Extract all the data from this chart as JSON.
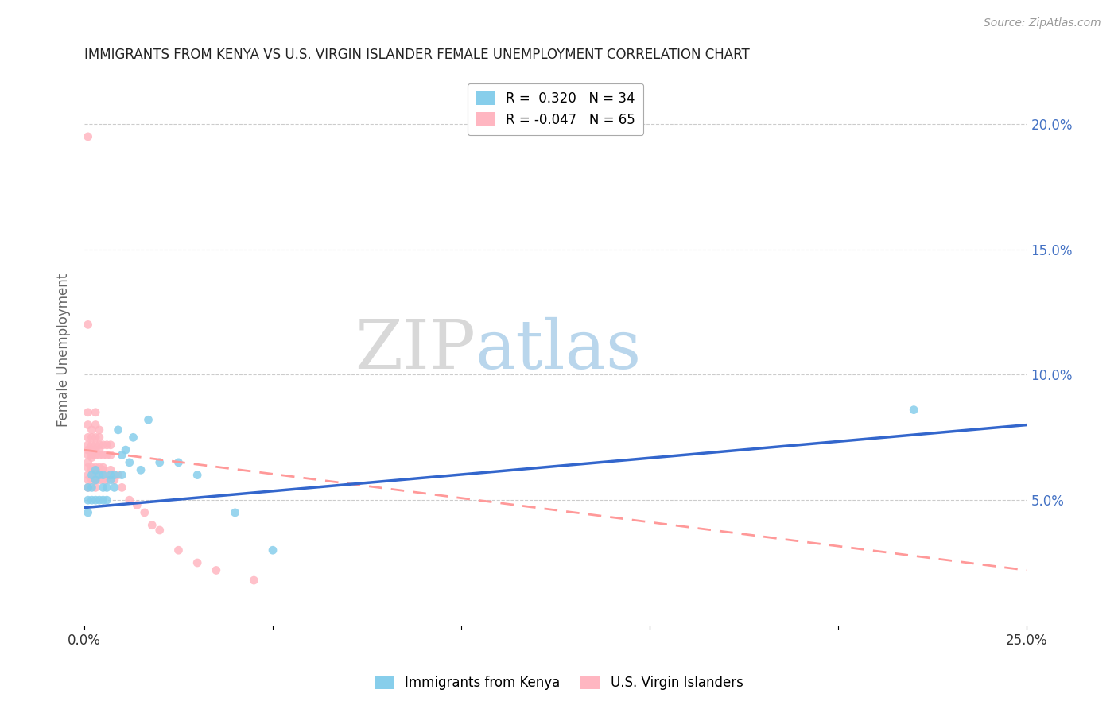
{
  "title": "IMMIGRANTS FROM KENYA VS U.S. VIRGIN ISLANDER FEMALE UNEMPLOYMENT CORRELATION CHART",
  "source_text": "Source: ZipAtlas.com",
  "ylabel": "Female Unemployment",
  "xlim": [
    0.0,
    0.25
  ],
  "ylim": [
    0.0,
    0.22
  ],
  "right_yticks": [
    0.05,
    0.1,
    0.15,
    0.2
  ],
  "right_yticklabels": [
    "5.0%",
    "10.0%",
    "15.0%",
    "20.0%"
  ],
  "xticks": [
    0.0,
    0.05,
    0.1,
    0.15,
    0.2,
    0.25
  ],
  "xticklabels": [
    "0.0%",
    "",
    "",
    "",
    "",
    "25.0%"
  ],
  "kenya_color": "#87CEEB",
  "virgin_color": "#FFB6C1",
  "kenya_line_color": "#3366CC",
  "virgin_line_color": "#FF9999",
  "watermark_zip": "ZIP",
  "watermark_atlas": "atlas",
  "kenya_scatter_x": [
    0.001,
    0.001,
    0.001,
    0.002,
    0.002,
    0.002,
    0.003,
    0.003,
    0.003,
    0.004,
    0.004,
    0.005,
    0.005,
    0.005,
    0.006,
    0.006,
    0.007,
    0.007,
    0.008,
    0.008,
    0.009,
    0.01,
    0.01,
    0.011,
    0.012,
    0.013,
    0.015,
    0.017,
    0.02,
    0.025,
    0.03,
    0.04,
    0.22,
    0.05
  ],
  "kenya_scatter_y": [
    0.05,
    0.045,
    0.055,
    0.05,
    0.06,
    0.055,
    0.05,
    0.058,
    0.062,
    0.05,
    0.06,
    0.05,
    0.055,
    0.06,
    0.055,
    0.05,
    0.058,
    0.06,
    0.055,
    0.06,
    0.078,
    0.06,
    0.068,
    0.07,
    0.065,
    0.075,
    0.062,
    0.082,
    0.065,
    0.065,
    0.06,
    0.045,
    0.086,
    0.03
  ],
  "virgin_scatter_x": [
    0.001,
    0.001,
    0.001,
    0.001,
    0.001,
    0.001,
    0.001,
    0.001,
    0.001,
    0.001,
    0.001,
    0.001,
    0.002,
    0.002,
    0.002,
    0.002,
    0.002,
    0.002,
    0.002,
    0.002,
    0.002,
    0.003,
    0.003,
    0.003,
    0.003,
    0.003,
    0.003,
    0.003,
    0.003,
    0.003,
    0.003,
    0.003,
    0.004,
    0.004,
    0.004,
    0.004,
    0.004,
    0.004,
    0.004,
    0.004,
    0.005,
    0.005,
    0.005,
    0.005,
    0.005,
    0.006,
    0.006,
    0.006,
    0.006,
    0.007,
    0.007,
    0.007,
    0.008,
    0.009,
    0.01,
    0.012,
    0.014,
    0.016,
    0.018,
    0.02,
    0.025,
    0.03,
    0.035,
    0.045,
    0.001
  ],
  "virgin_scatter_y": [
    0.195,
    0.075,
    0.068,
    0.063,
    0.058,
    0.055,
    0.06,
    0.065,
    0.07,
    0.072,
    0.08,
    0.085,
    0.062,
    0.068,
    0.072,
    0.075,
    0.058,
    0.063,
    0.067,
    0.07,
    0.078,
    0.062,
    0.068,
    0.072,
    0.058,
    0.063,
    0.07,
    0.075,
    0.08,
    0.085,
    0.055,
    0.06,
    0.062,
    0.068,
    0.072,
    0.058,
    0.063,
    0.07,
    0.075,
    0.078,
    0.062,
    0.068,
    0.072,
    0.058,
    0.063,
    0.06,
    0.068,
    0.072,
    0.058,
    0.062,
    0.068,
    0.072,
    0.058,
    0.06,
    0.055,
    0.05,
    0.048,
    0.045,
    0.04,
    0.038,
    0.03,
    0.025,
    0.022,
    0.018,
    0.12
  ],
  "virgin_line_start_y": 0.07,
  "virgin_line_end_y": 0.022,
  "kenya_line_start_y": 0.047,
  "kenya_line_end_y": 0.08,
  "background_color": "#ffffff",
  "grid_color": "#cccccc",
  "title_color": "#222222",
  "axis_label_color": "#666666",
  "right_axis_color": "#4472c4"
}
